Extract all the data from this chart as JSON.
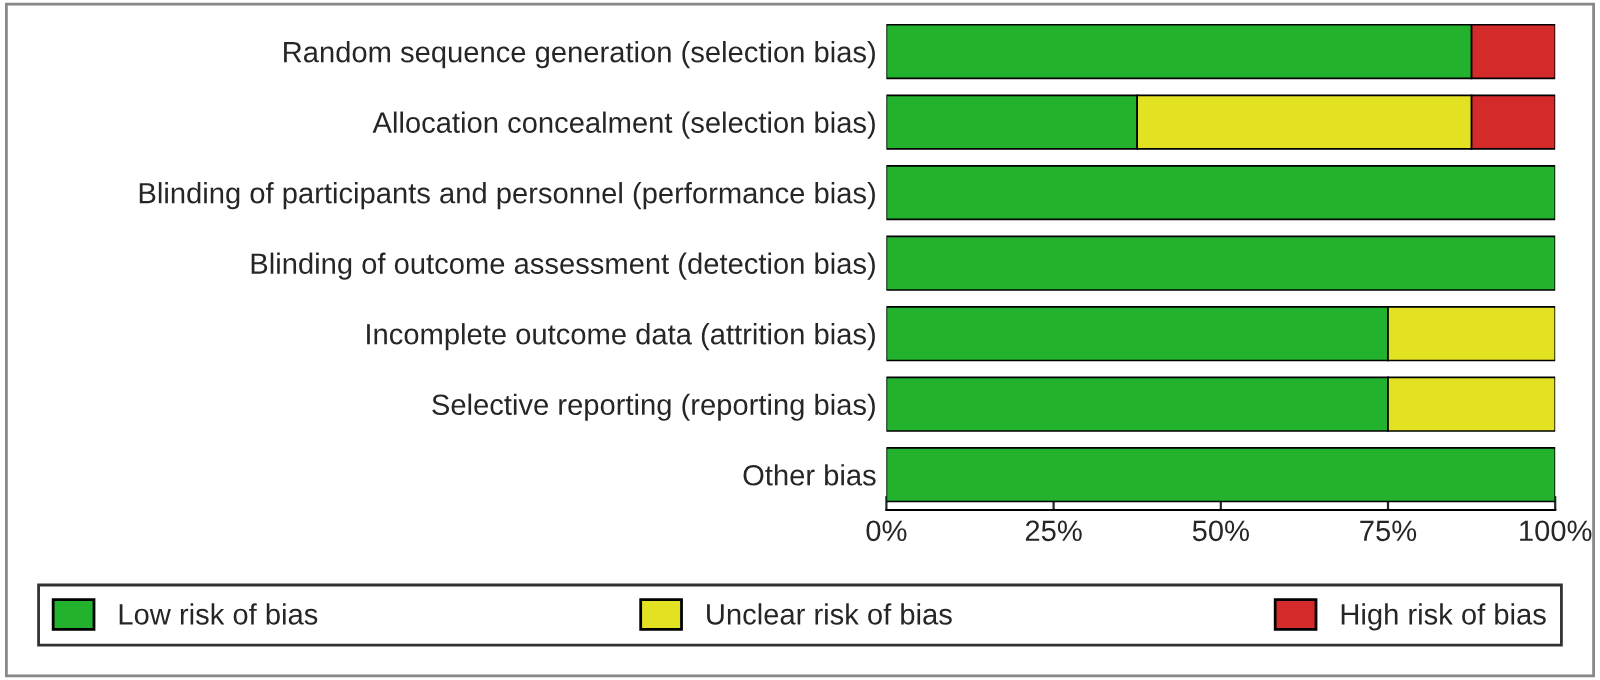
{
  "chart_data": {
    "type": "bar",
    "orientation": "horizontal",
    "stacked": true,
    "categories": [
      "Random sequence generation (selection bias)",
      "Allocation concealment (selection bias)",
      "Blinding of participants and personnel (performance bias)",
      "Blinding of outcome assessment (detection bias)",
      "Incomplete outcome data (attrition bias)",
      "Selective reporting (reporting bias)",
      "Other bias"
    ],
    "series": [
      {
        "name": "Low risk of bias",
        "color": "#22b22e",
        "values": [
          87.5,
          37.5,
          100,
          100,
          75,
          75,
          100
        ]
      },
      {
        "name": "Unclear risk of bias",
        "color": "#e2e222",
        "values": [
          0,
          50,
          0,
          0,
          25,
          25,
          0
        ]
      },
      {
        "name": "High risk of bias",
        "color": "#d42a2a",
        "values": [
          12.5,
          12.5,
          0,
          0,
          0,
          0,
          0
        ]
      }
    ],
    "xlim": [
      0,
      100
    ],
    "xticks": [
      {
        "value": 0,
        "label": "0%"
      },
      {
        "value": 25,
        "label": "25%"
      },
      {
        "value": 50,
        "label": "50%"
      },
      {
        "value": 75,
        "label": "75%"
      },
      {
        "value": 100,
        "label": "100%"
      }
    ],
    "legend": "bottom"
  }
}
